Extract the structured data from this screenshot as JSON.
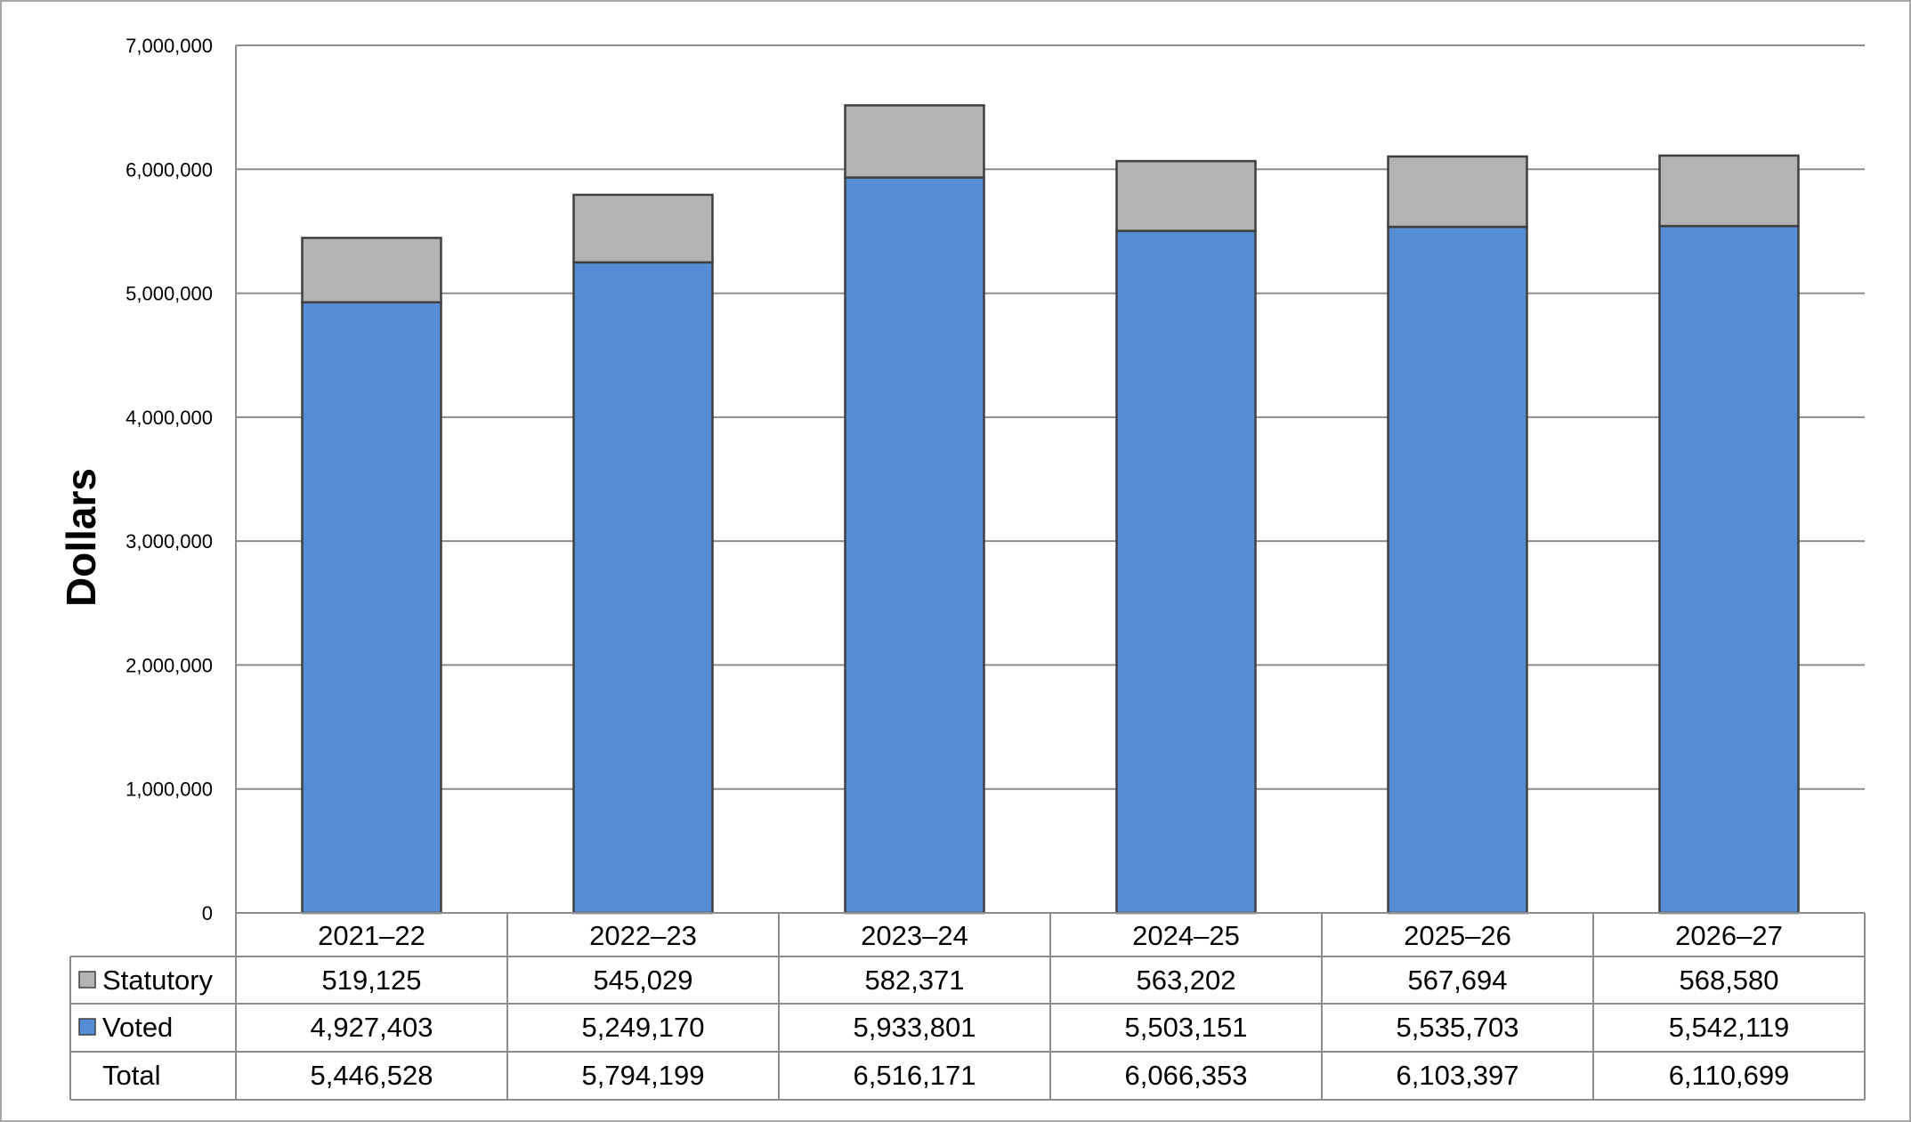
{
  "chart_data": {
    "type": "bar",
    "stacked": true,
    "title": "",
    "xlabel": "",
    "ylabel": "Dollars",
    "ylim": [
      0,
      7000000
    ],
    "yticks": [
      0,
      1000000,
      2000000,
      3000000,
      4000000,
      5000000,
      6000000,
      7000000
    ],
    "ytick_labels": [
      "0",
      "1,000,000",
      "2,000,000",
      "3,000,000",
      "4,000,000",
      "5,000,000",
      "6,000,000",
      "7,000,000"
    ],
    "grid": true,
    "categories": [
      "2021–22",
      "2022–23",
      "2023–24",
      "2024–25",
      "2025–26",
      "2026–27"
    ],
    "series": [
      {
        "name": "Statutory",
        "color": "#b3b3b3",
        "values": [
          519125,
          545029,
          582371,
          563202,
          567694,
          568580
        ],
        "labels": [
          "519,125",
          "545,029",
          "582,371",
          "563,202",
          "567,694",
          "568,580"
        ]
      },
      {
        "name": "Voted",
        "color": "#558ed5",
        "values": [
          4927403,
          5249170,
          5933801,
          5503151,
          5535703,
          5542119
        ],
        "labels": [
          "4,927,403",
          "5,249,170",
          "5,933,801",
          "5,503,151",
          "5,535,703",
          "5,542,119"
        ]
      }
    ],
    "total_row": {
      "label": "Total",
      "values": [
        5446528,
        5794199,
        6516171,
        6066353,
        6103397,
        6110699
      ],
      "labels": [
        "5,446,528",
        "5,794,199",
        "6,516,171",
        "6,066,353",
        "6,103,397",
        "6,110,699"
      ]
    },
    "legend": "data-table"
  }
}
